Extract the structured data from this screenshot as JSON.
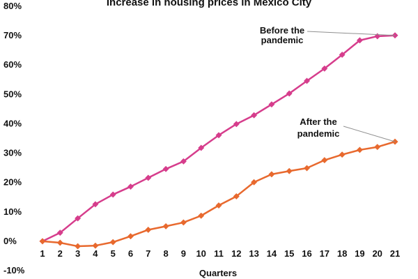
{
  "chart_data": {
    "type": "line",
    "title": "Increase in housing prices in Mexico City",
    "xlabel": "Quarters",
    "ylabel": "",
    "grid": false,
    "categories": [
      "1",
      "2",
      "3",
      "4",
      "5",
      "6",
      "7",
      "8",
      "9",
      "10",
      "11",
      "12",
      "13",
      "14",
      "15",
      "16",
      "17",
      "18",
      "19",
      "20",
      "21"
    ],
    "ylim": [
      -10,
      80
    ],
    "y_ticks": [
      -10,
      0,
      10,
      20,
      30,
      40,
      50,
      60,
      70,
      80
    ],
    "y_tick_labels": [
      "-10%",
      "0%",
      "10%",
      "20%",
      "30%",
      "40%",
      "50%",
      "60%",
      "70%",
      "80%"
    ],
    "series": [
      {
        "name": "Before the pandemic",
        "color": "#d63d8c",
        "values": [
          0,
          2.9,
          7.8,
          12.6,
          15.9,
          18.6,
          21.6,
          24.6,
          27.2,
          31.8,
          36.1,
          39.9,
          42.9,
          46.6,
          50.3,
          54.6,
          58.8,
          63.5,
          68.4,
          69.8,
          70.1
        ],
        "annotation": {
          "lines": [
            "Before the",
            "pandemic"
          ],
          "target_index": 20
        }
      },
      {
        "name": "After the pandemic",
        "color": "#e8692e",
        "values": [
          0,
          -0.5,
          -1.7,
          -1.5,
          -0.3,
          1.7,
          3.9,
          5.1,
          6.4,
          8.7,
          12.2,
          15.3,
          20.1,
          22.8,
          23.9,
          24.9,
          27.6,
          29.5,
          31.1,
          32.1,
          33.9
        ],
        "annotation": {
          "lines": [
            "After the",
            "pandemic"
          ],
          "target_index": 20
        }
      }
    ]
  }
}
